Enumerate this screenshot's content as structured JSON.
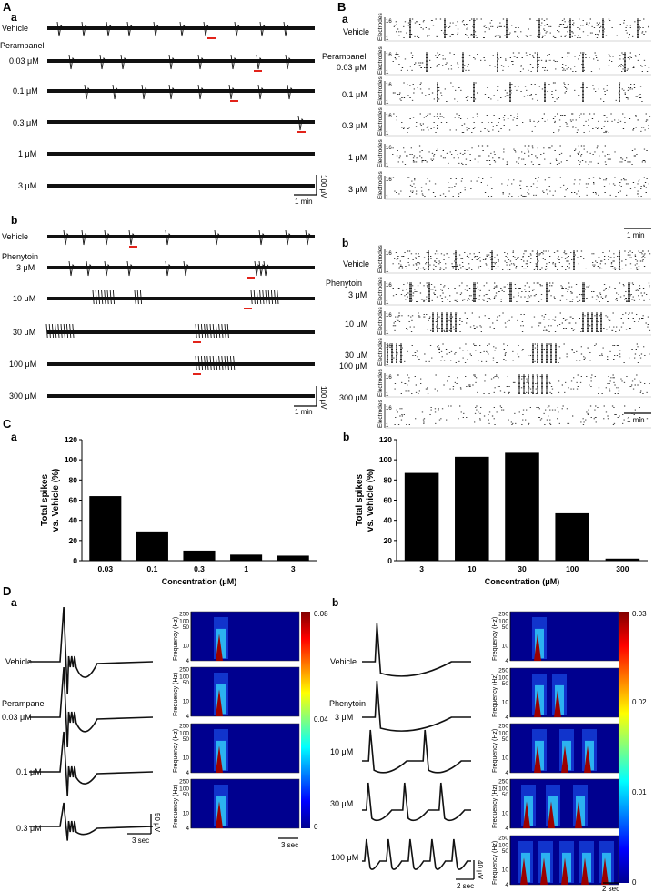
{
  "panel_letters": {
    "A": "A",
    "B": "B",
    "C": "C",
    "D": "D",
    "a": "a",
    "b": "b"
  },
  "panelA": {
    "a": {
      "drug": "Perampanel",
      "rows": [
        "Vehicle",
        "0.03 μM",
        "0.1 μM",
        "0.3 μM",
        "1 μM",
        "3 μM"
      ]
    },
    "b": {
      "drug": "Phenytoin",
      "rows": [
        "Vehicle",
        "3 μM",
        "10 μM",
        "30 μM",
        "100 μM",
        "300 μM"
      ]
    },
    "scale_amp": "100 μV",
    "scale_time": "1 min"
  },
  "panelB": {
    "a": {
      "drug": "Perampanel",
      "rows": [
        "Vehicle",
        "0.03 μM",
        "0.1 μM",
        "0.3 μM",
        "1 μM",
        "3 μM"
      ]
    },
    "b": {
      "drug": "Phenytoin",
      "rows": [
        "Vehicle",
        "3 μM",
        "10 μM",
        "30 μM",
        "100 μM",
        "300 μM"
      ]
    },
    "electrodes_label": "Electrodes",
    "elec_top": "16",
    "elec_bottom": "1",
    "scale_time": "1 min"
  },
  "panelD": {
    "a": {
      "drug": "Perampanel",
      "rows": [
        "Vehicle",
        "0.03 μM",
        "0.1 μM",
        "0.3 μM"
      ],
      "scale_amp": "50 μV",
      "scale_time": "3 sec",
      "spec_scale_time": "3 sec",
      "colorbar": {
        "max": "0.08",
        "mid": "0.04",
        "min": "0"
      }
    },
    "b": {
      "drug": "Phenytoin",
      "rows": [
        "Vehicle",
        "3 μM",
        "10 μM",
        "30 μM",
        "100 μM"
      ],
      "scale_amp": "40 μV",
      "scale_time": "2 sec",
      "spec_scale_time": "2 sec",
      "colorbar": {
        "max": "0.03",
        "q3": "0.02",
        "q2": "0.01",
        "min": "0"
      }
    },
    "freq_label": "Frequency (Hz)",
    "freq_ticks": [
      "250",
      "100",
      "50",
      "10",
      "4"
    ]
  },
  "colors": {
    "trace": "#111111",
    "marker": "#e2231a",
    "bar": "#000000"
  },
  "chart_data": [
    {
      "type": "bar",
      "panel": "Ca",
      "categories": [
        "0.03",
        "0.1",
        "0.3",
        "1",
        "3"
      ],
      "values": [
        64,
        29,
        10,
        6,
        5
      ],
      "xlabel": "Concentration (μM)",
      "ylabel": "Total spikes vs. Vehicle (%)",
      "ylabel_lines": [
        "Total spikes",
        "vs. Vehicle (%)"
      ],
      "ylim": [
        0,
        120
      ],
      "yticks": [
        "0",
        "20",
        "40",
        "60",
        "80",
        "100",
        "120"
      ],
      "grid": false
    },
    {
      "type": "bar",
      "panel": "Cb",
      "categories": [
        "3",
        "10",
        "30",
        "100",
        "300"
      ],
      "values": [
        87,
        103,
        107,
        47,
        2
      ],
      "xlabel": "Concentration (μM)",
      "ylabel": "Total spikes vs. Vehicle (%)",
      "ylabel_lines": [
        "Total spikes",
        "vs. Vehicle (%)"
      ],
      "ylim": [
        0,
        120
      ],
      "yticks": [
        "0",
        "20",
        "40",
        "60",
        "80",
        "100",
        "120"
      ],
      "grid": false
    }
  ]
}
